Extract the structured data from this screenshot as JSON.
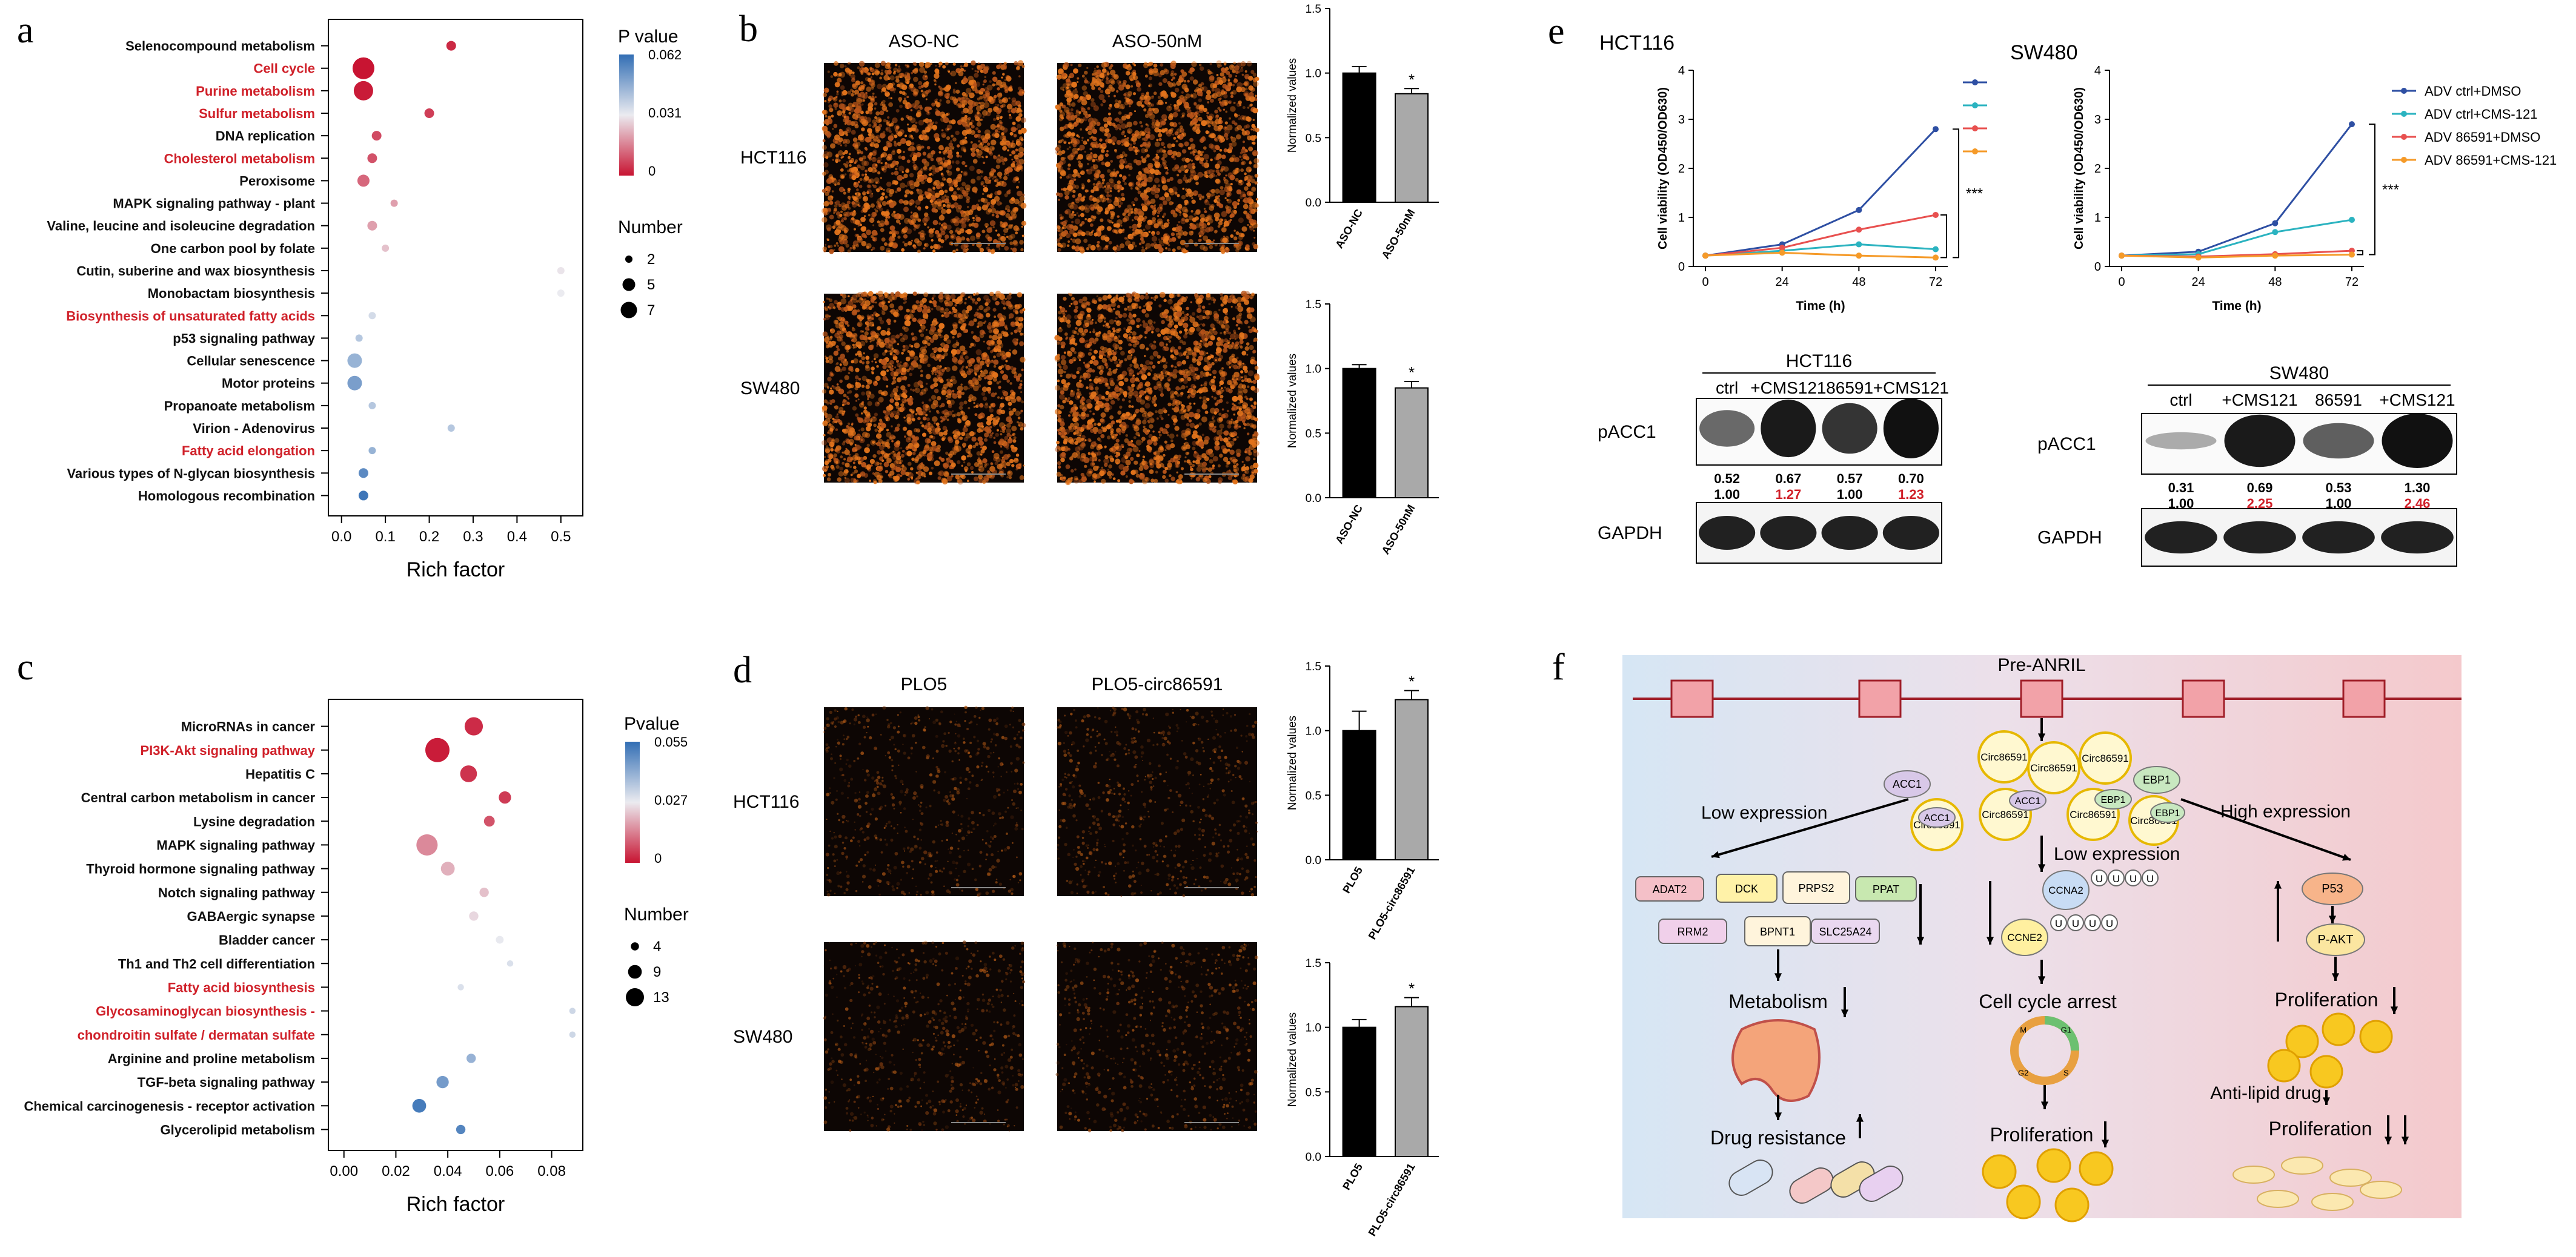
{
  "figure": {
    "panels": {
      "a": {
        "letter": "a",
        "terms": [
          {
            "label": "Selenocompound metabolism",
            "red": false,
            "rich": 0.25,
            "p": 0.003,
            "n": 2
          },
          {
            "label": "Cell cycle",
            "red": true,
            "rich": 0.05,
            "p": 0.0,
            "n": 7
          },
          {
            "label": "Purine metabolism",
            "red": true,
            "rich": 0.05,
            "p": 0.001,
            "n": 6
          },
          {
            "label": "Sulfur metabolism",
            "red": true,
            "rich": 0.2,
            "p": 0.006,
            "n": 2
          },
          {
            "label": "DNA replication",
            "red": false,
            "rich": 0.08,
            "p": 0.008,
            "n": 2
          },
          {
            "label": "Cholesterol metabolism",
            "red": true,
            "rich": 0.07,
            "p": 0.009,
            "n": 2
          },
          {
            "label": "Peroxisome",
            "red": false,
            "rich": 0.05,
            "p": 0.012,
            "n": 3
          },
          {
            "label": "MAPK signaling pathway - plant",
            "red": false,
            "rich": 0.12,
            "p": 0.02,
            "n": 1
          },
          {
            "label": "Valine, leucine and isoleucine degradation",
            "red": false,
            "rich": 0.07,
            "p": 0.02,
            "n": 2
          },
          {
            "label": "One carbon pool by folate",
            "red": false,
            "rich": 0.1,
            "p": 0.025,
            "n": 1
          },
          {
            "label": "Cutin, suberine and wax biosynthesis",
            "red": false,
            "rich": 0.5,
            "p": 0.03,
            "n": 1
          },
          {
            "label": "Monobactam biosynthesis",
            "red": false,
            "rich": 0.5,
            "p": 0.031,
            "n": 1
          },
          {
            "label": "Biosynthesis of unsaturated fatty acids",
            "red": true,
            "rich": 0.07,
            "p": 0.035,
            "n": 1
          },
          {
            "label": "p53 signaling pathway",
            "red": false,
            "rich": 0.04,
            "p": 0.04,
            "n": 1
          },
          {
            "label": "Cellular senescence",
            "red": false,
            "rich": 0.03,
            "p": 0.045,
            "n": 4
          },
          {
            "label": "Motor proteins",
            "red": false,
            "rich": 0.03,
            "p": 0.05,
            "n": 4
          },
          {
            "label": "Propanoate metabolism",
            "red": false,
            "rich": 0.07,
            "p": 0.04,
            "n": 1
          },
          {
            "label": "Virion - Adenovirus",
            "red": false,
            "rich": 0.25,
            "p": 0.04,
            "n": 1
          },
          {
            "label": "Fatty acid elongation",
            "red": true,
            "rich": 0.07,
            "p": 0.045,
            "n": 1
          },
          {
            "label": "Various types of N-glycan biosynthesis",
            "red": false,
            "rich": 0.05,
            "p": 0.055,
            "n": 2
          },
          {
            "label": "Homologous recombination",
            "red": false,
            "rich": 0.05,
            "p": 0.06,
            "n": 2
          }
        ],
        "xticks": [
          "0.0",
          "0.1",
          "0.2",
          "0.3",
          "0.4",
          "0.5"
        ],
        "xmin": -0.03,
        "xmax": 0.55,
        "xlabel": "Rich factor",
        "legend_title": "P value",
        "legend_ticks": [
          "0.062",
          "0.031",
          "0"
        ],
        "pmax": 0.062,
        "size_title": "Number",
        "sizes": [
          "2",
          "5",
          "7"
        ],
        "nmax": 7
      },
      "c": {
        "letter": "c",
        "terms": [
          {
            "label": "MicroRNAs in cancer",
            "red": false,
            "rich": 0.05,
            "p": 0.003,
            "n": 9
          },
          {
            "label": "PI3K-Akt signaling pathway",
            "red": true,
            "rich": 0.036,
            "p": 0.001,
            "n": 13
          },
          {
            "label": "Hepatitis C",
            "red": false,
            "rich": 0.048,
            "p": 0.004,
            "n": 8
          },
          {
            "label": "Central carbon metabolism in cancer",
            "red": false,
            "rich": 0.062,
            "p": 0.005,
            "n": 5
          },
          {
            "label": "Lysine degradation",
            "red": false,
            "rich": 0.056,
            "p": 0.008,
            "n": 4
          },
          {
            "label": "MAPK signaling pathway",
            "red": false,
            "rich": 0.032,
            "p": 0.015,
            "n": 11
          },
          {
            "label": "Thyroid hormone signaling pathway",
            "red": false,
            "rich": 0.04,
            "p": 0.02,
            "n": 6
          },
          {
            "label": "Notch signaling pathway",
            "red": false,
            "rich": 0.054,
            "p": 0.022,
            "n": 3
          },
          {
            "label": "GABAergic synapse",
            "red": false,
            "rich": 0.05,
            "p": 0.025,
            "n": 3
          },
          {
            "label": "Bladder cancer",
            "red": false,
            "rich": 0.06,
            "p": 0.028,
            "n": 2
          },
          {
            "label": "Th1 and Th2 cell differentiation",
            "red": false,
            "rich": 0.064,
            "p": 0.03,
            "n": 1
          },
          {
            "label": "Fatty acid biosynthesis",
            "red": true,
            "rich": 0.045,
            "p": 0.03,
            "n": 1
          },
          {
            "label": "Glycosaminoglycan biosynthesis -",
            "red": true,
            "rich": 0.088,
            "p": 0.032,
            "n": 1
          },
          {
            "label": "chondroitin sulfate / dermatan sulfate",
            "red": true,
            "rich": 0.088,
            "p": 0.032,
            "n": 1
          },
          {
            "label": "Arginine and proline metabolism",
            "red": false,
            "rich": 0.049,
            "p": 0.04,
            "n": 3
          },
          {
            "label": "TGF-beta signaling pathway",
            "red": false,
            "rich": 0.038,
            "p": 0.045,
            "n": 5
          },
          {
            "label": "Chemical carcinogenesis - receptor activation",
            "red": false,
            "rich": 0.029,
            "p": 0.052,
            "n": 6
          },
          {
            "label": "Glycerolipid metabolism",
            "red": false,
            "rich": 0.045,
            "p": 0.05,
            "n": 3
          }
        ],
        "xticks": [
          "0.00",
          "0.02",
          "0.04",
          "0.06",
          "0.08"
        ],
        "xmin": -0.006,
        "xmax": 0.092,
        "xlabel": "Rich factor",
        "legend_title": "Pvalue",
        "legend_ticks": [
          "0.055",
          "0.027",
          "0"
        ],
        "pmax": 0.055,
        "size_title": "Number",
        "sizes": [
          "4",
          "9",
          "13"
        ],
        "nmax": 13
      },
      "b": {
        "letter": "b",
        "col1": "ASO-NC",
        "col2": "ASO-50nM",
        "row1": "HCT116",
        "row2": "SW480",
        "signal": "strong",
        "bars": [
          {
            "categories": [
              "ASO-NC",
              "ASO-50nM"
            ],
            "values": [
              1.0,
              0.84
            ],
            "errors": [
              0.05,
              0.04
            ],
            "star": "*",
            "ylabel": "Normalized values",
            "yticks": [
              "0.0",
              "0.5",
              "1.0",
              "1.5"
            ],
            "ymax": 1.5
          },
          {
            "categories": [
              "ASO-NC",
              "ASO-50nM"
            ],
            "values": [
              1.0,
              0.85
            ],
            "errors": [
              0.03,
              0.05
            ],
            "star": "*",
            "ylabel": "Normalized values",
            "yticks": [
              "0.0",
              "0.5",
              "1.0",
              "1.5"
            ],
            "ymax": 1.5
          }
        ]
      },
      "d": {
        "letter": "d",
        "col1": "PLO5",
        "col2": "PLO5-circ86591",
        "row1": "HCT116",
        "row2": "SW480",
        "signal": "weak",
        "bars": [
          {
            "categories": [
              "PLO5",
              "PLO5-circ86591"
            ],
            "values": [
              1.0,
              1.24
            ],
            "errors": [
              0.15,
              0.07
            ],
            "star": "*",
            "ylabel": "Normalized values",
            "yticks": [
              "0.0",
              "0.5",
              "1.0",
              "1.5"
            ],
            "ymax": 1.5
          },
          {
            "categories": [
              "PLO5",
              "PLO5-circ86591"
            ],
            "values": [
              1.0,
              1.16
            ],
            "errors": [
              0.06,
              0.07
            ],
            "star": "*",
            "ylabel": "Normalized values",
            "yticks": [
              "0.0",
              "0.5",
              "1.0",
              "1.5"
            ],
            "ymax": 1.5
          }
        ]
      },
      "e": {
        "letter": "e",
        "lines": [
          {
            "title": "HCT116",
            "x": [
              0,
              24,
              48,
              72
            ],
            "series": [
              {
                "name": "ADV ctrl+DMSO",
                "color": "#2e4fa3",
                "values": [
                  0.22,
                  0.45,
                  1.15,
                  2.8
                ]
              },
              {
                "name": "ADV ctrl+CMS-121",
                "color": "#2bb3c0",
                "values": [
                  0.22,
                  0.32,
                  0.45,
                  0.35
                ]
              },
              {
                "name": "ADV 86591+DMSO",
                "color": "#e8504f",
                "values": [
                  0.22,
                  0.38,
                  0.75,
                  1.05
                ]
              },
              {
                "name": "ADV 86591+CMS-121",
                "color": "#f59a28",
                "values": [
                  0.22,
                  0.28,
                  0.22,
                  0.18
                ]
              }
            ]
          },
          {
            "title": "SW480",
            "x": [
              0,
              24,
              48,
              72
            ],
            "series": [
              {
                "name": "ADV ctrl+DMSO",
                "color": "#2e4fa3",
                "values": [
                  0.22,
                  0.3,
                  0.88,
                  2.9
                ]
              },
              {
                "name": "ADV ctrl+CMS-121",
                "color": "#2bb3c0",
                "values": [
                  0.22,
                  0.25,
                  0.7,
                  0.95
                ]
              },
              {
                "name": "ADV 86591+DMSO",
                "color": "#e8504f",
                "values": [
                  0.22,
                  0.2,
                  0.25,
                  0.32
                ]
              },
              {
                "name": "ADV 86591+CMS-121",
                "color": "#f59a28",
                "values": [
                  0.22,
                  0.18,
                  0.22,
                  0.24
                ]
              }
            ]
          }
        ],
        "ylabel": "Cell viability (OD450/OD630)",
        "xlabel": "Time (h)",
        "yticks": [
          "0",
          "1",
          "2",
          "3",
          "4"
        ],
        "xticks": [
          "0",
          "24",
          "48",
          "72"
        ],
        "sig": "***",
        "blots": [
          {
            "title": "HCT116",
            "lanes": [
              "ctrl",
              "+CMS121",
              "86591",
              "+CMS121"
            ],
            "row1": "pACC1",
            "row2": "GAPDH",
            "r1": [
              "0.52",
              "0.67",
              "0.57",
              "0.70"
            ],
            "r2": [
              "1.00",
              "1.27",
              "1.00",
              "1.23"
            ],
            "r2red": [
              false,
              true,
              false,
              true
            ],
            "pacc_int": [
              0.5,
              0.95,
              0.8,
              1.0
            ]
          },
          {
            "title": "SW480",
            "lanes": [
              "ctrl",
              "+CMS121",
              "86591",
              "+CMS121"
            ],
            "row1": "pACC1",
            "row2": "GAPDH",
            "r1": [
              "0.31",
              "0.69",
              "0.53",
              "1.30"
            ],
            "r2": [
              "1.00",
              "2.25",
              "1.00",
              "2.46"
            ],
            "r2red": [
              false,
              true,
              false,
              true
            ],
            "pacc_int": [
              0.12,
              0.95,
              0.55,
              1.0
            ]
          }
        ]
      },
      "f": {
        "letter": "f",
        "top": "Pre-ANRIL",
        "left_title": "Low expression",
        "center_title": "Low expression",
        "right_title": "High expression",
        "acc": "ACC1",
        "circ": "Circ86591",
        "ebp": "EBP1",
        "genes": [
          "ADAT2",
          "DCK",
          "PRPS2",
          "PPAT",
          "RRM2",
          "BPNT1",
          "SLC25A24"
        ],
        "ccna": "CCNA2",
        "ccne": "CCNE2",
        "u": "U",
        "metab": "Metabolism",
        "drug": "Drug resistance",
        "arrest": "Cell cycle arrest",
        "prolif": "Proliferation",
        "p53": "P53",
        "pakt": "P-AKT",
        "anti": "Anti-lipid drug",
        "phases": [
          "G1",
          "S",
          "G2",
          "M"
        ]
      }
    }
  }
}
